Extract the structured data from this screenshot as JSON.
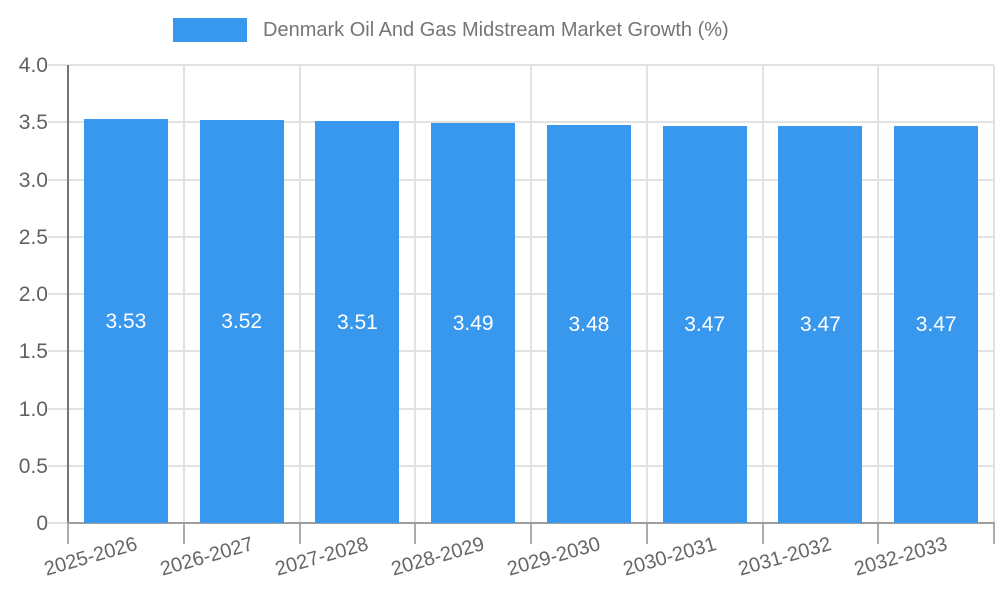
{
  "chart_data": {
    "type": "bar",
    "title": "Denmark Oil And Gas Midstream Market Growth (%)",
    "legend_label": "Denmark Oil And Gas Midstream Market Growth (%)",
    "legend_position": "top",
    "categories": [
      "2025-2026",
      "2026-2027",
      "2027-2028",
      "2028-2029",
      "2029-2030",
      "2030-2031",
      "2031-2032",
      "2032-2033"
    ],
    "values": [
      3.53,
      3.52,
      3.51,
      3.49,
      3.48,
      3.47,
      3.47,
      3.47
    ],
    "bar_labels": [
      "3.53",
      "3.52",
      "3.51",
      "3.49",
      "3.48",
      "3.47",
      "3.47",
      "3.47"
    ],
    "xlabel": "",
    "ylabel": "",
    "ylim": [
      0,
      4.0
    ],
    "yticks": [
      0,
      0.5,
      1.0,
      1.5,
      2.0,
      2.5,
      3.0,
      3.5,
      4.0
    ],
    "ytick_labels": [
      "0",
      "0.5",
      "1.0",
      "1.5",
      "2.0",
      "2.5",
      "3.0",
      "3.5",
      "4.0"
    ],
    "grid": true,
    "colors": {
      "bar": "#3898ee",
      "grid": "#e2e2e2",
      "y_axis": "#757575",
      "x_axis": "#9e9e9e",
      "tick_text": "#616161",
      "x_tick_text": "#666666",
      "title_text": "#757575",
      "bar_label_text": "#ffffff",
      "background": "#ffffff"
    }
  }
}
